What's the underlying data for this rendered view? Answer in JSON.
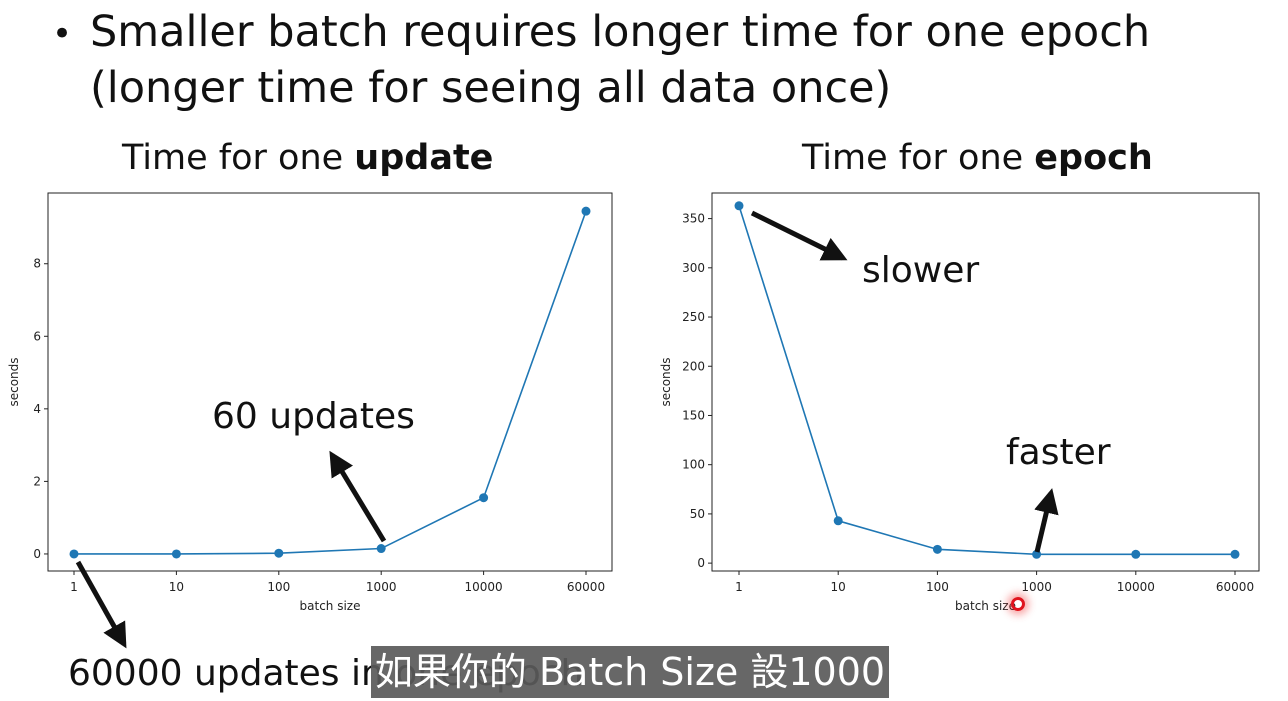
{
  "slide": {
    "bullet_symbol": "•",
    "bullet_line1": "Smaller batch requires longer time for one epoch",
    "bullet_line2": "(longer time for seeing all data once)"
  },
  "annotations": {
    "sixty_updates": "60 updates",
    "slower": "slower",
    "faster": "faster",
    "sixty_thousand": "60000 updates in one epoch"
  },
  "subtitle": "如果你的 Batch Size 設1000",
  "chart_data": [
    {
      "type": "line",
      "title_prefix": "Time for one ",
      "title_bold": "update",
      "xlabel": "batch size",
      "ylabel": "seconds",
      "categories": [
        "1",
        "10",
        "100",
        "1000",
        "10000",
        "60000"
      ],
      "values": [
        0.0,
        0.0,
        0.02,
        0.15,
        1.55,
        9.45
      ],
      "ylim": [
        -0.47,
        9.95
      ],
      "yticks": [
        0,
        2,
        4,
        6,
        8
      ],
      "color": "#1f77b4",
      "grid": false
    },
    {
      "type": "line",
      "title_prefix": "Time for one ",
      "title_bold": "epoch",
      "xlabel": "batch size",
      "ylabel": "seconds",
      "categories": [
        "1",
        "10",
        "100",
        "1000",
        "10000",
        "60000"
      ],
      "values": [
        363,
        43,
        14,
        9,
        9,
        9
      ],
      "ylim": [
        -8,
        376
      ],
      "yticks": [
        0,
        50,
        100,
        150,
        200,
        250,
        300,
        350
      ],
      "color": "#1f77b4",
      "grid": false
    }
  ]
}
